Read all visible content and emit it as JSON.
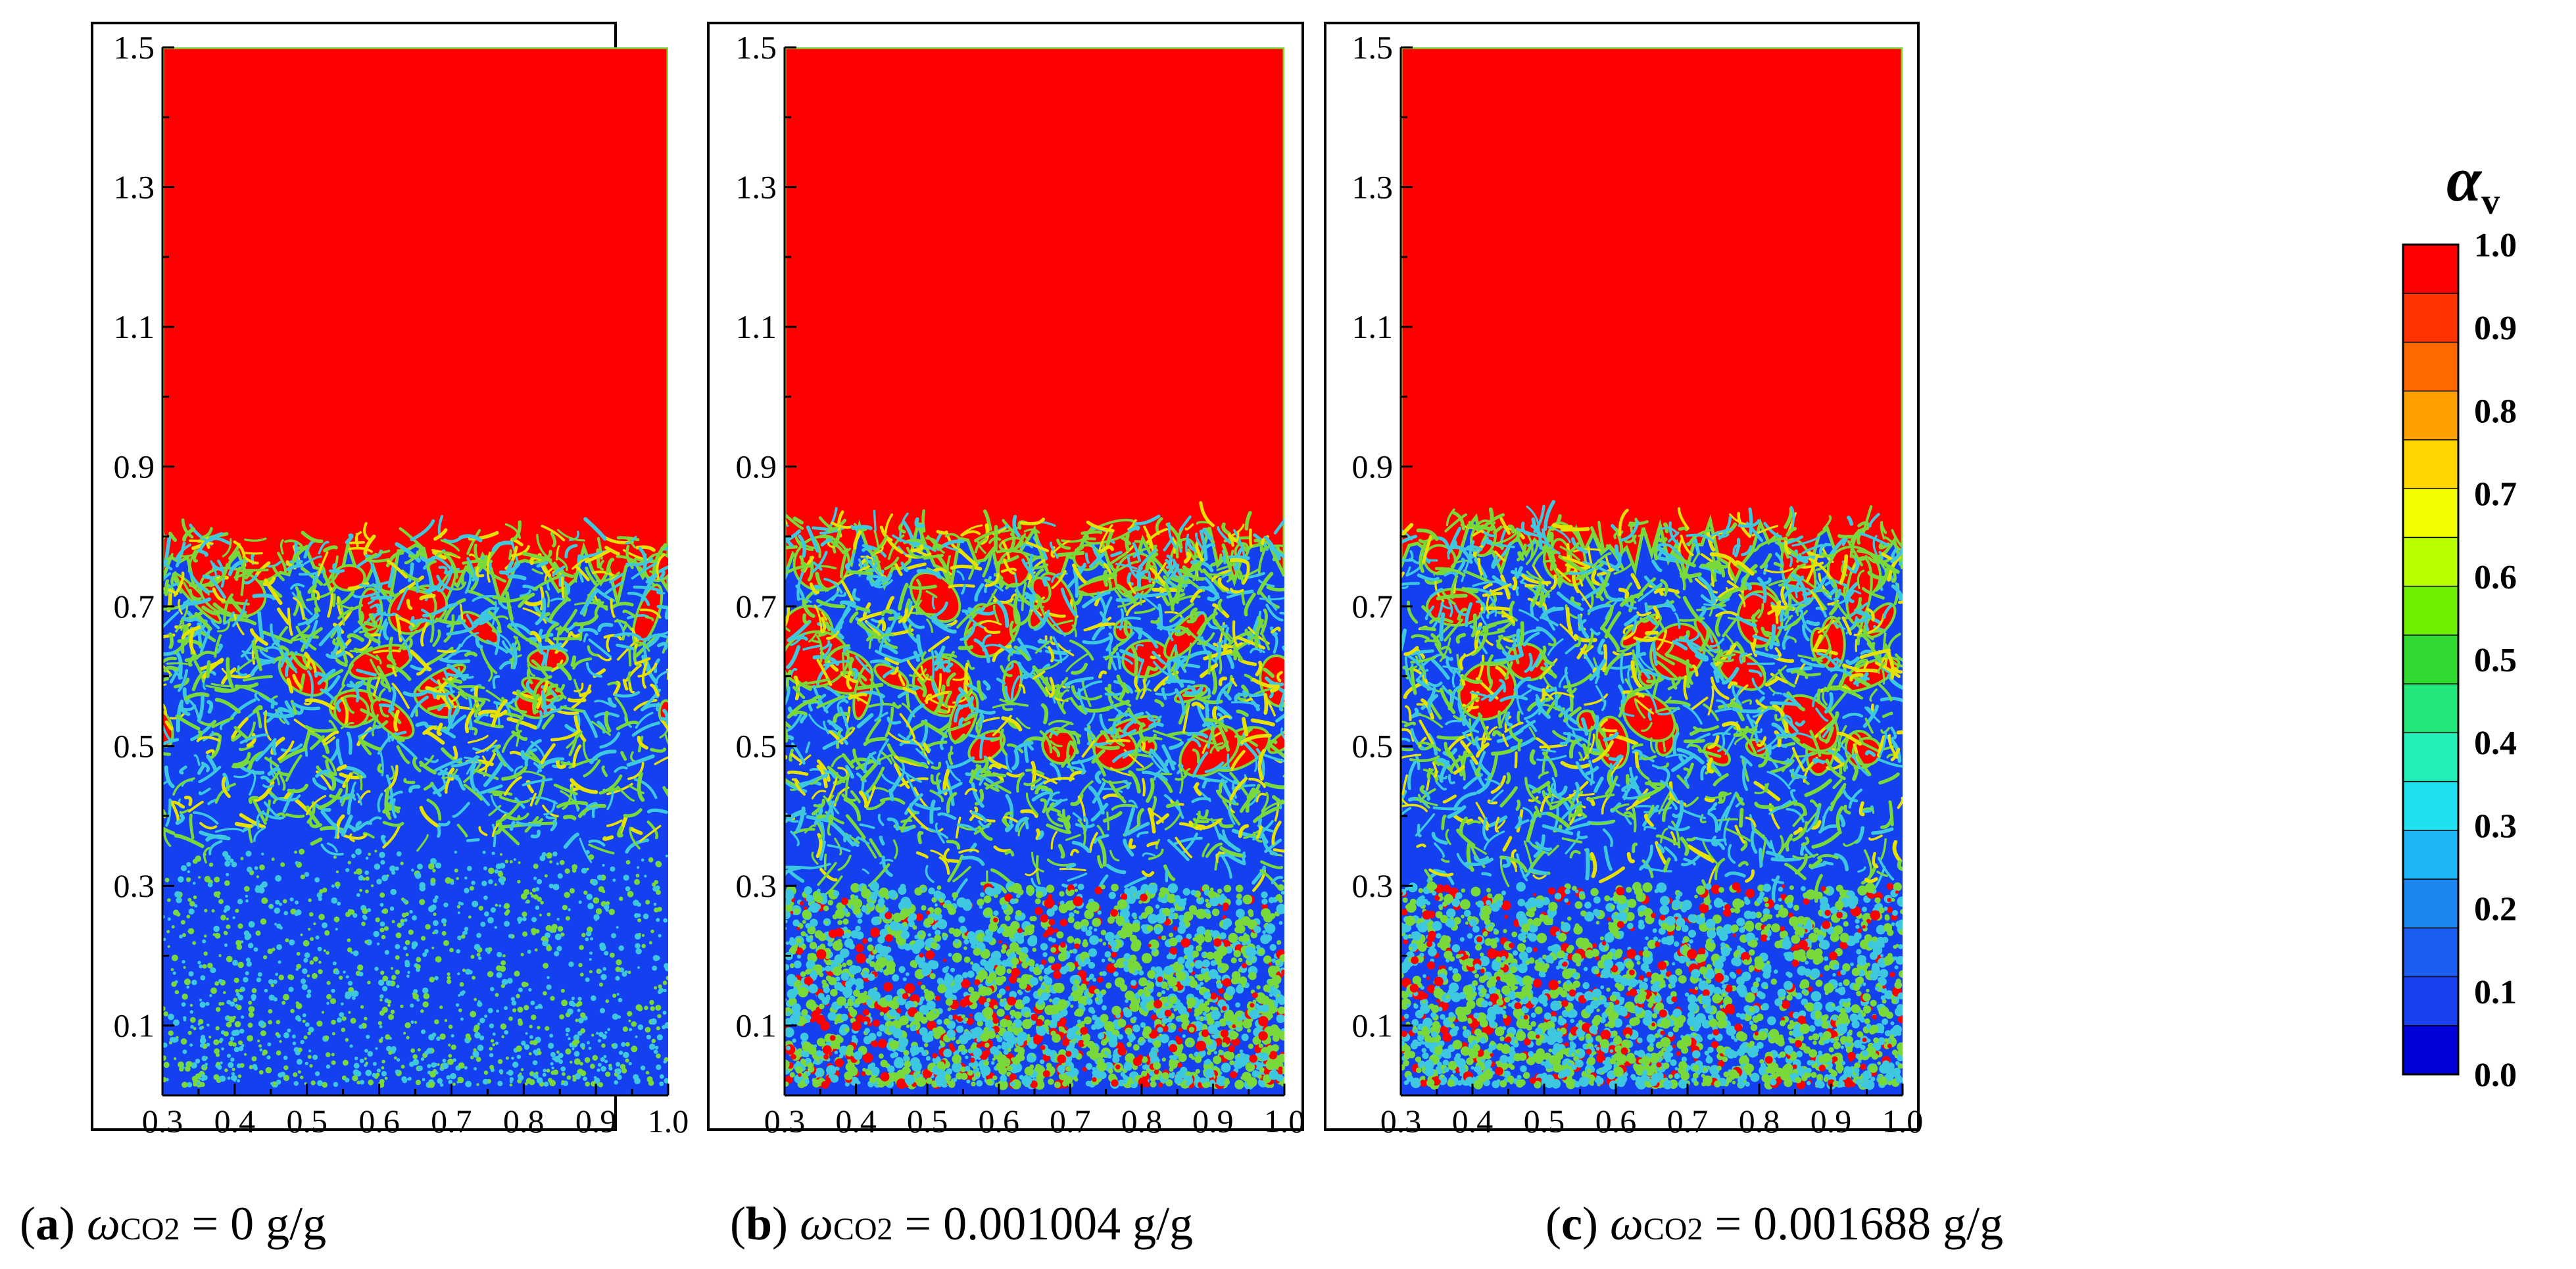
{
  "chart_data": [
    {
      "type": "heatmap",
      "panel": "a",
      "caption_letter": "a",
      "caption_symbol": "ω",
      "caption_subscript": "CO2",
      "caption_value": "= 0 g/g",
      "x_ticks": [
        "0.3",
        "0.4",
        "0.5",
        "0.6",
        "0.7",
        "0.8",
        "0.9",
        "1.0"
      ],
      "y_ticks": [
        "0.1",
        "0.3",
        "0.5",
        "0.7",
        "0.9",
        "1.1",
        "1.3",
        "1.5"
      ],
      "xlim": [
        0.3,
        1.0
      ],
      "ylim": [
        0.0,
        1.5
      ],
      "vapor_region_lower_edge": 0.75,
      "mixing_zone": [
        0.35,
        0.8
      ],
      "dispersed_bubbles_below": 0.35
    },
    {
      "type": "heatmap",
      "panel": "b",
      "caption_letter": "b",
      "caption_symbol": "ω",
      "caption_subscript": "CO2",
      "caption_value": "= 0.001004 g/g",
      "x_ticks": [
        "0.3",
        "0.4",
        "0.5",
        "0.6",
        "0.7",
        "0.8",
        "0.9",
        "1.0"
      ],
      "y_ticks": [
        "0.1",
        "0.3",
        "0.5",
        "0.7",
        "0.9",
        "1.1",
        "1.3",
        "1.5"
      ],
      "xlim": [
        0.3,
        1.0
      ],
      "ylim": [
        0.0,
        1.5
      ],
      "vapor_region_lower_edge": 0.77,
      "mixing_zone": [
        0.3,
        0.82
      ],
      "dispersed_bubbles_below": 0.3
    },
    {
      "type": "heatmap",
      "panel": "c",
      "caption_letter": "c",
      "caption_symbol": "ω",
      "caption_subscript": "CO2",
      "caption_value": "= 0.001688 g/g",
      "x_ticks": [
        "0.3",
        "0.4",
        "0.5",
        "0.6",
        "0.7",
        "0.8",
        "0.9",
        "1.0"
      ],
      "y_ticks": [
        "0.1",
        "0.3",
        "0.5",
        "0.7",
        "0.9",
        "1.1",
        "1.3",
        "1.5"
      ],
      "xlim": [
        0.3,
        1.0
      ],
      "ylim": [
        0.0,
        1.5
      ],
      "vapor_region_lower_edge": 0.78,
      "mixing_zone": [
        0.3,
        0.82
      ],
      "dispersed_bubbles_below": 0.3
    }
  ],
  "colorbar": {
    "title": "α",
    "title_subscript": "v",
    "labels": [
      "1.0",
      "0.9",
      "0.8",
      "0.7",
      "0.6",
      "0.5",
      "0.4",
      "0.3",
      "0.2",
      "0.1",
      "0.0"
    ],
    "colors": [
      "#ff0000",
      "#ff3300",
      "#ff6a00",
      "#ffa000",
      "#ffd400",
      "#f2ff00",
      "#b8ff00",
      "#6ef000",
      "#2fd92f",
      "#22e87a",
      "#22f0b8",
      "#20e0f0",
      "#1eb4f5",
      "#1c86f0",
      "#1c5cf0",
      "#1a40f0",
      "#0000d8"
    ],
    "range": [
      0.0,
      1.0
    ]
  },
  "colors": {
    "vapor": "#ff0000",
    "liquid": "#1540f0",
    "interface_green": "#7ad93a",
    "interface_cyan": "#3ec8e0",
    "interface_yellow": "#e6e200",
    "frame": "#000000"
  }
}
